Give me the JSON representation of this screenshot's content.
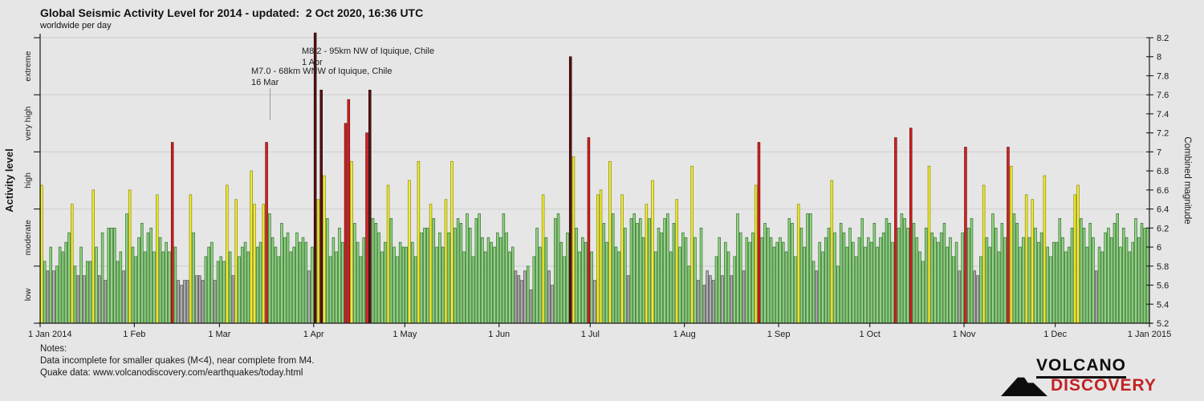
{
  "title": "Global Seismic Activity Level for 2014 - updated:  2 Oct 2020, 16:36 UTC",
  "subtitle": "worldwide per day",
  "left_axis": {
    "label": "Activity level",
    "bands": [
      "extreme",
      "very high",
      "high",
      "moderate",
      "low"
    ]
  },
  "right_axis": {
    "label": "Combined magnitude",
    "min": 5.2,
    "max": 8.2,
    "tick_step": 0.2
  },
  "x_axis": {
    "tick_labels": [
      "1 Jan 2014",
      "1 Feb",
      "1 Mar",
      "1 Apr",
      "1 May",
      "1 Jun",
      "1 Jul",
      "1 Aug",
      "1 Sep",
      "1 Oct",
      "1 Nov",
      "1 Dec",
      "1 Jan 2015"
    ],
    "tick_days": [
      0,
      31,
      59,
      90,
      120,
      151,
      181,
      212,
      243,
      273,
      304,
      334,
      365
    ]
  },
  "annotations": [
    {
      "text": "M8.2 - 95km NW of Iquique, Chile",
      "date_label": "1 Apr",
      "day_of_year": 91
    },
    {
      "text": "M7.0 - 68km WNW of Iquique, Chile",
      "date_label": "16 Mar",
      "day_of_year": 75
    }
  ],
  "notes": {
    "heading": "Notes:",
    "line1": "Data incomplete for smaller quakes (M<4), near complete from M4.",
    "line2": "Quake data: www.volcanodiscovery.com/earthquakes/today.html"
  },
  "logo": {
    "line1": "VOLCANO",
    "line2": "DISCOVERY",
    "accent_color": "#c32222"
  },
  "colors": {
    "background": "#e6e6e6",
    "gridline": "#d4d4d4",
    "axis": "#1a1a1a",
    "levels": {
      "low": {
        "fill": "#b0b0b0",
        "stroke": "#4a4a4a"
      },
      "moderate": {
        "fill": "#92d47f",
        "stroke": "#2f6e2f"
      },
      "high": {
        "fill": "#f2ef2f",
        "stroke": "#85850e"
      },
      "very_high": {
        "fill": "#d42020",
        "stroke": "#6e0d0d"
      },
      "extreme": {
        "fill": "#5c1212",
        "stroke": "#250505"
      }
    }
  },
  "chart_data": {
    "type": "bar",
    "title": "Global Seismic Activity Level for 2014",
    "x_start_date": "2014-01-01",
    "x_end_date": "2014-12-31",
    "ylabel_right": "Combined magnitude",
    "ylabel_left": "Activity level",
    "ylim": [
      5.2,
      8.2
    ],
    "gridlines_at": [
      5.8,
      6.4,
      7.0,
      7.6
    ],
    "level_thresholds": {
      "low": "<5.8",
      "moderate": "5.8-6.4",
      "high": "6.4-7.0",
      "very_high": "7.0-7.6",
      "extreme": ">=7.6"
    },
    "values_note": "one combined-magnitude value per day, 1 Jan - 31 Dec 2014, estimated from bar heights",
    "values": [
      6.65,
      5.85,
      5.75,
      6.0,
      5.75,
      5.8,
      6.0,
      5.95,
      6.05,
      6.15,
      6.45,
      5.8,
      5.7,
      6.0,
      5.7,
      5.85,
      5.85,
      6.6,
      6.0,
      5.7,
      6.15,
      5.65,
      6.2,
      6.2,
      6.2,
      5.85,
      5.95,
      5.75,
      6.35,
      6.6,
      6.0,
      5.9,
      6.1,
      6.25,
      5.95,
      6.15,
      6.2,
      5.95,
      6.55,
      6.1,
      5.95,
      6.05,
      5.95,
      7.1,
      6.0,
      5.65,
      5.6,
      5.65,
      5.65,
      6.55,
      6.15,
      5.7,
      5.7,
      5.65,
      5.9,
      6.0,
      6.05,
      5.65,
      5.85,
      5.9,
      5.85,
      6.65,
      5.95,
      5.7,
      6.5,
      5.9,
      6.0,
      6.05,
      5.95,
      6.8,
      6.45,
      6.0,
      6.05,
      6.45,
      7.1,
      6.35,
      6.1,
      6.0,
      5.9,
      6.25,
      6.1,
      6.15,
      5.95,
      6.0,
      6.15,
      6.05,
      6.1,
      6.05,
      5.75,
      6.0,
      8.25,
      6.5,
      7.65,
      6.75,
      6.3,
      5.9,
      6.1,
      5.95,
      6.2,
      6.05,
      7.3,
      7.55,
      6.9,
      6.25,
      6.05,
      5.9,
      6.1,
      7.2,
      7.65,
      6.3,
      6.25,
      6.15,
      5.95,
      6.05,
      6.65,
      6.3,
      6.0,
      5.9,
      6.05,
      6.0,
      6.0,
      6.7,
      6.05,
      5.9,
      6.9,
      6.15,
      6.2,
      6.2,
      6.45,
      6.3,
      6.0,
      6.15,
      6.0,
      6.5,
      6.15,
      6.9,
      6.2,
      6.3,
      6.25,
      5.95,
      6.35,
      6.2,
      5.9,
      6.3,
      6.35,
      6.1,
      5.95,
      6.1,
      6.05,
      6.0,
      6.15,
      6.1,
      6.35,
      6.15,
      5.95,
      6.0,
      5.75,
      5.7,
      5.65,
      5.75,
      5.8,
      5.55,
      5.9,
      6.2,
      6.0,
      6.55,
      6.1,
      5.75,
      5.6,
      6.3,
      6.35,
      6.05,
      5.9,
      6.15,
      8.0,
      6.95,
      6.2,
      5.95,
      6.1,
      6.05,
      7.15,
      5.95,
      5.65,
      6.55,
      6.6,
      6.25,
      6.05,
      6.9,
      6.35,
      6.0,
      5.95,
      6.55,
      6.2,
      5.7,
      6.3,
      6.35,
      6.25,
      6.3,
      6.1,
      6.45,
      6.3,
      6.7,
      5.95,
      6.2,
      6.15,
      6.3,
      6.35,
      5.95,
      6.25,
      6.5,
      6.0,
      6.15,
      6.1,
      5.8,
      6.85,
      6.1,
      5.65,
      6.2,
      5.6,
      5.75,
      5.7,
      5.65,
      5.9,
      6.1,
      5.7,
      6.05,
      5.95,
      5.7,
      5.9,
      6.35,
      6.15,
      5.75,
      6.1,
      6.05,
      6.15,
      6.65,
      7.1,
      6.1,
      6.25,
      6.2,
      6.1,
      6.0,
      6.05,
      6.1,
      6.05,
      5.95,
      6.3,
      6.25,
      5.9,
      6.45,
      6.2,
      6.0,
      6.35,
      6.35,
      5.85,
      5.75,
      6.05,
      5.95,
      6.1,
      6.2,
      6.7,
      6.15,
      5.8,
      6.25,
      6.15,
      6.0,
      6.2,
      6.05,
      5.9,
      6.1,
      6.3,
      6.0,
      6.1,
      6.05,
      6.25,
      6.0,
      6.1,
      6.15,
      6.3,
      6.25,
      6.05,
      7.15,
      6.2,
      6.35,
      6.3,
      6.2,
      7.25,
      6.25,
      6.1,
      5.95,
      5.85,
      6.2,
      6.85,
      6.15,
      6.1,
      6.05,
      6.15,
      6.25,
      6.0,
      6.1,
      5.9,
      6.05,
      5.75,
      6.15,
      7.05,
      6.2,
      6.3,
      5.75,
      5.7,
      5.9,
      6.65,
      6.1,
      6.0,
      6.35,
      6.2,
      5.95,
      6.25,
      6.1,
      7.05,
      6.85,
      6.35,
      6.25,
      6.0,
      6.1,
      6.55,
      6.1,
      6.5,
      6.2,
      6.05,
      6.15,
      6.75,
      6.0,
      5.9,
      6.05,
      6.05,
      6.3,
      6.1,
      5.95,
      6.0,
      6.2,
      6.55,
      6.65,
      6.3,
      6.2,
      6.0,
      6.25,
      6.1,
      5.75,
      6.0,
      5.95,
      6.15,
      6.2,
      6.1,
      6.25,
      6.35,
      6.0,
      6.2,
      6.1,
      5.95,
      6.05,
      6.3,
      6.1,
      6.25,
      6.2,
      6.2
    ]
  }
}
